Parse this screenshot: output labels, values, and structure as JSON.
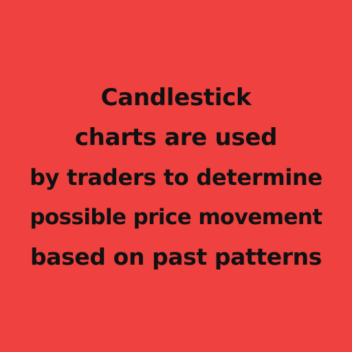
{
  "colors": {
    "background": "#ee4140",
    "text": "#111111"
  },
  "text_lines": [
    "Candlestick",
    "charts are used",
    "by traders to determine",
    "possible price movement",
    "based on past patterns"
  ]
}
